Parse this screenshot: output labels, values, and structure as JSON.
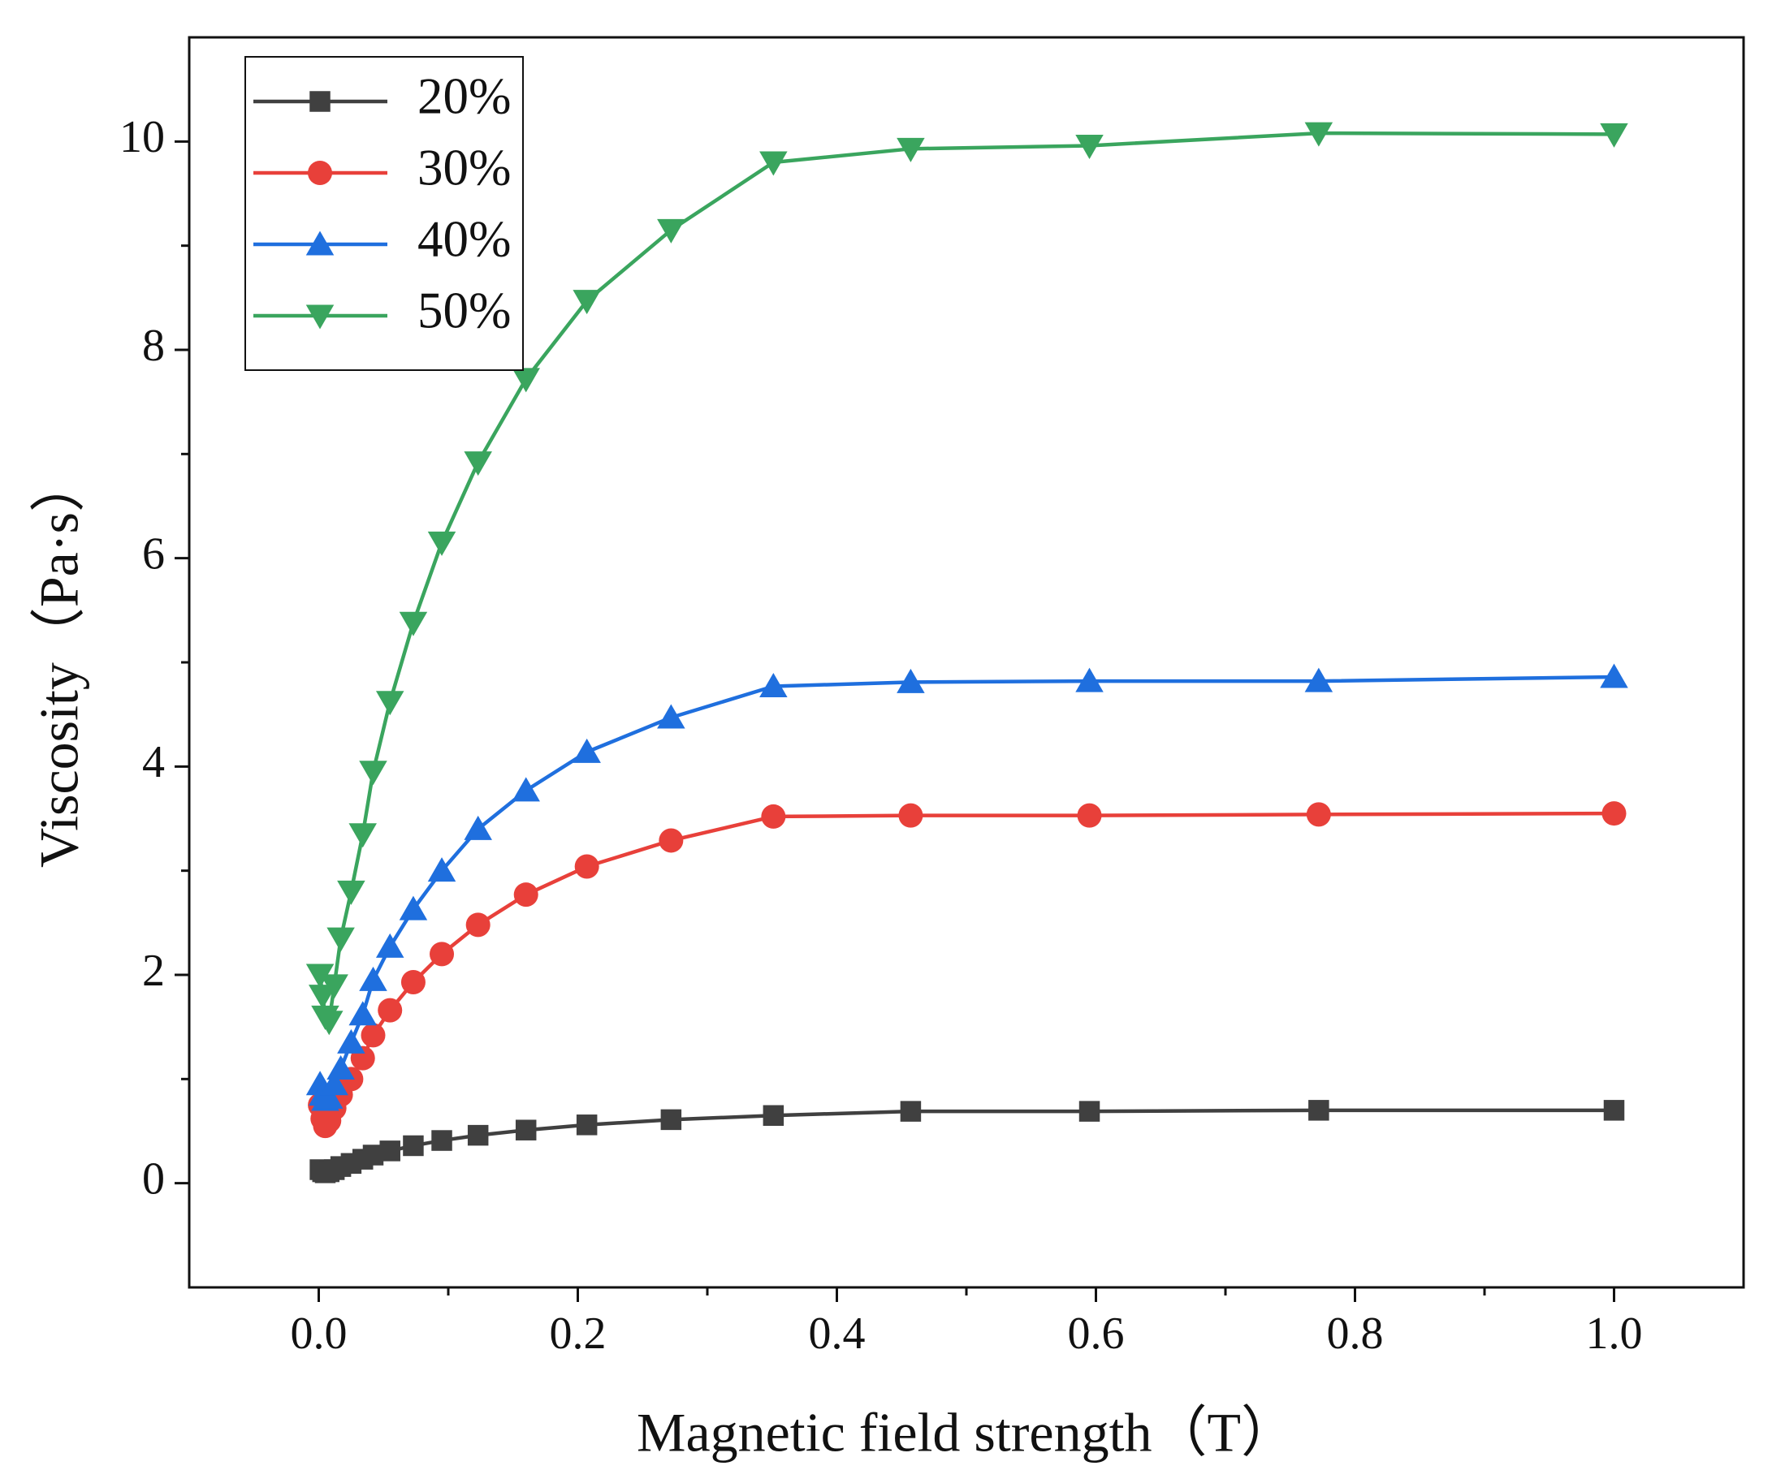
{
  "chart_data": {
    "type": "line",
    "xlabel": "Magnetic field strength（T）",
    "ylabel": "Viscosity（Pa·s）",
    "x": [
      0.001,
      0.003,
      0.005,
      0.008,
      0.012,
      0.017,
      0.025,
      0.034,
      0.042,
      0.055,
      0.073,
      0.095,
      0.123,
      0.16,
      0.207,
      0.272,
      0.351,
      0.457,
      0.595,
      0.772,
      1.0
    ],
    "series": [
      {
        "name": "20%",
        "color": "#404040",
        "marker": "square",
        "values": [
          0.13,
          0.11,
          0.1,
          0.11,
          0.13,
          0.16,
          0.19,
          0.23,
          0.27,
          0.31,
          0.36,
          0.41,
          0.46,
          0.51,
          0.56,
          0.61,
          0.65,
          0.69,
          0.69,
          0.7,
          0.7
        ]
      },
      {
        "name": "30%",
        "color": "#e8403a",
        "marker": "circle",
        "values": [
          0.75,
          0.62,
          0.55,
          0.6,
          0.72,
          0.85,
          1.0,
          1.2,
          1.42,
          1.66,
          1.93,
          2.2,
          2.48,
          2.77,
          3.04,
          3.29,
          3.52,
          3.53,
          3.53,
          3.54,
          3.55
        ]
      },
      {
        "name": "40%",
        "color": "#1f6fde",
        "marker": "triangle-up",
        "values": [
          0.95,
          0.85,
          0.8,
          0.82,
          0.95,
          1.1,
          1.35,
          1.62,
          1.95,
          2.27,
          2.63,
          3.0,
          3.4,
          3.77,
          4.14,
          4.47,
          4.77,
          4.81,
          4.82,
          4.82,
          4.86
        ]
      },
      {
        "name": "50%",
        "color": "#3aa55e",
        "marker": "triangle-down",
        "values": [
          2.0,
          1.8,
          1.6,
          1.55,
          1.9,
          2.35,
          2.8,
          3.35,
          3.95,
          4.62,
          5.38,
          6.15,
          6.92,
          7.72,
          8.47,
          9.15,
          9.8,
          9.93,
          9.96,
          10.08,
          10.07
        ]
      }
    ],
    "xlim": [
      -0.1,
      1.1
    ],
    "ylim": [
      -1,
      11
    ],
    "xticks": [
      {
        "value": 0,
        "label": "0.0"
      },
      {
        "value": 0.2,
        "label": "0.2"
      },
      {
        "value": 0.4,
        "label": "0.4"
      },
      {
        "value": 0.6,
        "label": "0.6"
      },
      {
        "value": 0.8,
        "label": "0.8"
      },
      {
        "value": 1,
        "label": "1.0"
      }
    ],
    "xminorticks": [
      0.1,
      0.3,
      0.5,
      0.7,
      0.9
    ],
    "yticks": [
      0,
      2,
      4,
      6,
      8,
      10
    ],
    "yminorticks": [
      1,
      3,
      5,
      7,
      9
    ],
    "legend": "upper left",
    "grid": false
  }
}
